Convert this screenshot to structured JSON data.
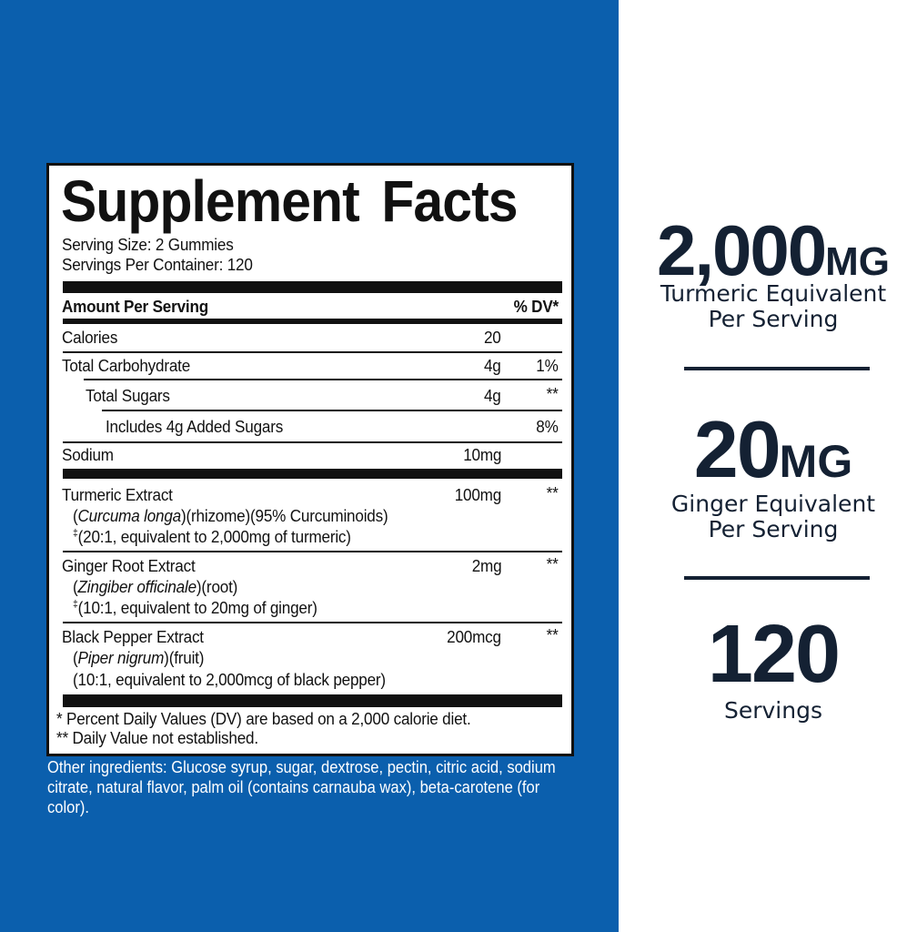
{
  "label": {
    "title": "Supplement Facts",
    "serving_size": "Serving Size: 2 Gummies",
    "servings_per_container": "Servings Per Container: 120",
    "header_amount": "Amount Per Serving",
    "header_dv": "% DV*",
    "rows": [
      {
        "name": "Calories",
        "amount": "20",
        "dv": ""
      },
      {
        "name": "Total Carbohydrate",
        "amount": "4g",
        "dv": "1%"
      },
      {
        "name": "Total Sugars",
        "amount": "4g",
        "dv": "**"
      },
      {
        "name": "Includes 4g Added Sugars",
        "amount": "",
        "dv": "8%"
      },
      {
        "name": "Sodium",
        "amount": "10mg",
        "dv": ""
      }
    ],
    "ingredients": [
      {
        "name": "Turmeric Extract",
        "amount": "100mg",
        "dv": "**",
        "latin": "Curcuma longa",
        "part": "(rhizome)(95% Curcuminoids)",
        "mark": "‡",
        "ratio": "(20:1, equivalent to 2,000mg of turmeric)"
      },
      {
        "name": "Ginger Root Extract",
        "amount": "2mg",
        "dv": "**",
        "latin": "Zingiber officinale",
        "part": "(root)",
        "mark": "‡",
        "ratio": "(10:1, equivalent to 20mg of ginger)"
      },
      {
        "name": "Black Pepper Extract",
        "amount": "200mcg",
        "dv": "**",
        "latin": "Piper nigrum",
        "part": "(fruit)",
        "mark": "",
        "ratio": "(10:1, equivalent to 2,000mcg of black pepper)"
      }
    ],
    "footnote1": "* Percent Daily Values (DV) are based on a 2,000 calorie diet.",
    "footnote2": "** Daily Value not established."
  },
  "other_ingredients": "Other ingredients: Glucose syrup, sugar, dextrose, pectin, citric acid, sodium citrate, natural flavor, palm oil (contains carnauba wax), beta-carotene (for color).",
  "highlights": [
    {
      "number": "2,000",
      "unit": "MG",
      "line1": "Turmeric Equivalent",
      "line2": "Per Serving"
    },
    {
      "number": "20",
      "unit": "MG",
      "line1": "Ginger Equivalent",
      "line2": "Per Serving"
    },
    {
      "number": "120",
      "unit": "",
      "line1": "Servings",
      "line2": ""
    }
  ],
  "colors": {
    "background_blue": "#0b5fad",
    "text_navy": "#142133"
  }
}
